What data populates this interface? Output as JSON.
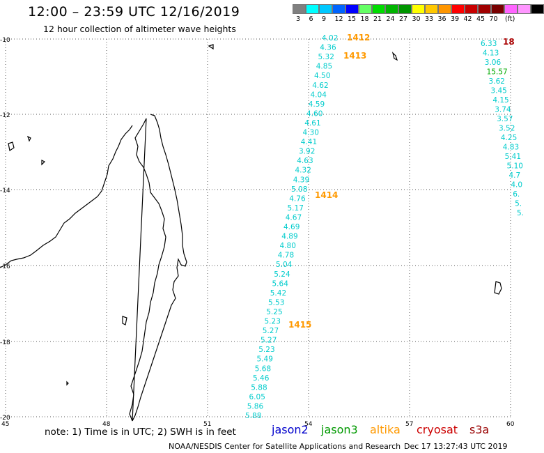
{
  "header": {
    "title": "12:00 – 23:59 UTC 12/16/2019",
    "subtitle": "12 hour collection of altimeter wave heights"
  },
  "color_scale": {
    "colors": [
      "#808080",
      "#00ffff",
      "#00c8ff",
      "#0064ff",
      "#0000ff",
      "#64ff64",
      "#00dc00",
      "#00b400",
      "#009600",
      "#ffff00",
      "#ffc800",
      "#ff9600",
      "#ff0000",
      "#c80000",
      "#a00000",
      "#780000",
      "#ff64ff",
      "#ff96ff",
      "#000000"
    ],
    "labels": [
      "3",
      "6",
      "9",
      "12",
      "15",
      "18",
      "21",
      "24",
      "27",
      "30",
      "33",
      "36",
      "39",
      "42",
      "45",
      "70",
      "(ft)"
    ]
  },
  "map": {
    "lat_labels": [
      "-10",
      "-12",
      "-14",
      "-16",
      "-18",
      "-20"
    ],
    "lon_labels": [
      "45",
      "48",
      "51",
      "54",
      "57",
      "60"
    ],
    "time_labels": [
      {
        "text": "1412",
        "color": "#ff9900"
      },
      {
        "text": "1413",
        "color": "#ff9900"
      },
      {
        "text": "1414",
        "color": "#ff9900"
      },
      {
        "text": "1415",
        "color": "#ff9900"
      },
      {
        "text": "18",
        "color": "#aa0000"
      }
    ],
    "track_main": [
      "4.02",
      "4.36",
      "5.32",
      "4.85",
      "4.50",
      "4.62",
      "4.04",
      "4.59",
      "4.60",
      "4.61",
      "4.30",
      "4.41",
      "3.92",
      "4.63",
      "4.32",
      "4.39",
      "5.08",
      "4.76",
      "5.17",
      "4.67",
      "4.69",
      "4.89",
      "4.80",
      "4.78",
      "5.04",
      "5.24",
      "5.64",
      "5.42",
      "5.53",
      "5.25",
      "5.23",
      "5.27",
      "5.27",
      "5.23",
      "5.49",
      "5.68",
      "5.46",
      "5.88",
      "6.05",
      "5.86",
      "5.88"
    ],
    "track_right": [
      "6.33",
      "4.13",
      "3.06",
      "15.57",
      "3.62",
      "3.45",
      "4.15",
      "3.74",
      "3.57",
      "3.52",
      "4.25",
      "4.83",
      "5.41",
      "5.10",
      "4.7",
      "4.0",
      "6.",
      "5.",
      "5."
    ],
    "track_right_colors": {
      "main": "#00cccc",
      "outlier": "#00aa00"
    }
  },
  "footer": {
    "note": "note:  1) Time is in UTC; 2) SWH is in feet",
    "legend": [
      {
        "name": "jason2",
        "color": "#0000cc"
      },
      {
        "name": "jason3",
        "color": "#009900"
      },
      {
        "name": "altika",
        "color": "#ff9900"
      },
      {
        "name": "cryosat",
        "color": "#cc0000"
      },
      {
        "name": "s3a",
        "color": "#990000"
      }
    ],
    "credit": "NOAA/NESDIS Center for Satellite Applications and Research",
    "timestamp": "Dec 17 13:27:43 UTC 2019"
  }
}
